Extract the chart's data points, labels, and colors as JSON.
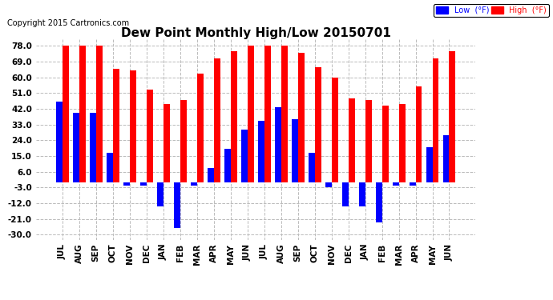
{
  "title": "Dew Point Monthly High/Low 20150701",
  "copyright": "Copyright 2015 Cartronics.com",
  "months": [
    "JUL",
    "AUG",
    "SEP",
    "OCT",
    "NOV",
    "DEC",
    "JAN",
    "FEB",
    "MAR",
    "APR",
    "MAY",
    "JUN",
    "JUL",
    "AUG",
    "SEP",
    "OCT",
    "NOV",
    "DEC",
    "JAN",
    "FEB",
    "MAR",
    "APR",
    "MAY",
    "JUN"
  ],
  "high_values": [
    78,
    78,
    78,
    65,
    64,
    53,
    45,
    47,
    62,
    71,
    75,
    78,
    78,
    78,
    74,
    66,
    60,
    48,
    47,
    44,
    45,
    55,
    71,
    75
  ],
  "low_values": [
    46,
    40,
    40,
    17,
    -2,
    -2,
    -14,
    -26,
    -2,
    8,
    19,
    30,
    35,
    43,
    36,
    17,
    -3,
    -14,
    -14,
    -23,
    -2,
    -2,
    20,
    27
  ],
  "high_color": "#FF0000",
  "low_color": "#0000FF",
  "bg_color": "#FFFFFF",
  "plot_bg_color": "#FFFFFF",
  "grid_color": "#BBBBBB",
  "yticks": [
    78.0,
    69.0,
    60.0,
    51.0,
    42.0,
    33.0,
    24.0,
    15.0,
    6.0,
    -3.0,
    -12.0,
    -21.0,
    -30.0
  ],
  "ylim": [
    -33,
    82
  ],
  "bar_width": 0.38,
  "title_fontsize": 11,
  "tick_fontsize": 7.5,
  "copyright_fontsize": 7,
  "legend_low_label": "Low  (°F)",
  "legend_high_label": "High  (°F)"
}
